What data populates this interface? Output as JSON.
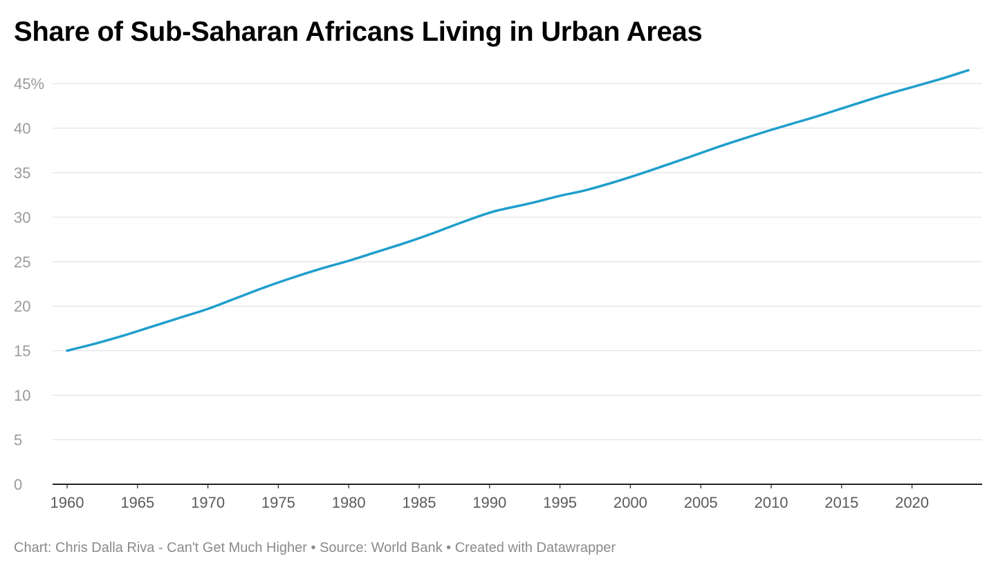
{
  "title": "Share of Sub-Saharan Africans Living in Urban Areas",
  "footer": {
    "credit": "Chart: Chris Dalla Riva - Can't Get Much Higher",
    "source": "Source: World Bank",
    "tool": "Created with Datawrapper",
    "separator": " • "
  },
  "colors": {
    "line": "#1f9ecc",
    "grid": "#e2e2e2",
    "axis": "#222222"
  },
  "chart_data": {
    "type": "line",
    "title": "Share of Sub-Saharan Africans Living in Urban Areas",
    "xlabel": "",
    "ylabel": "",
    "xlim": [
      1960,
      2024
    ],
    "ylim": [
      0,
      45
    ],
    "grid": true,
    "y_ticks": [
      0,
      5,
      10,
      15,
      20,
      25,
      30,
      35,
      40,
      45
    ],
    "y_tick_labels": [
      "0",
      "5",
      "10",
      "15",
      "20",
      "25",
      "30",
      "35",
      "40",
      "45%"
    ],
    "x_ticks": [
      1960,
      1965,
      1970,
      1975,
      1980,
      1985,
      1990,
      1995,
      2000,
      2005,
      2010,
      2015,
      2020
    ],
    "x_tick_labels": [
      "1960",
      "1965",
      "1970",
      "1975",
      "1980",
      "1985",
      "1990",
      "1995",
      "2000",
      "2005",
      "2010",
      "2015",
      "2020"
    ],
    "series": [
      {
        "x": [
          1960,
          1962,
          1964,
          1966,
          1968,
          1970,
          1972,
          1974,
          1976,
          1978,
          1980,
          1982,
          1984,
          1986,
          1988,
          1990,
          1991,
          1993,
          1995,
          1997,
          2000,
          2003,
          2005,
          2007,
          2010,
          2013,
          2015,
          2018,
          2020,
          2022,
          2024
        ],
        "y": [
          15.0,
          15.8,
          16.7,
          17.7,
          18.7,
          19.7,
          20.9,
          22.1,
          23.2,
          24.2,
          25.1,
          26.1,
          27.1,
          28.2,
          29.4,
          30.5,
          30.9,
          31.6,
          32.4,
          33.1,
          34.5,
          36.1,
          37.2,
          38.3,
          39.8,
          41.2,
          42.2,
          43.7,
          44.6,
          45.5,
          46.5
        ]
      }
    ]
  }
}
